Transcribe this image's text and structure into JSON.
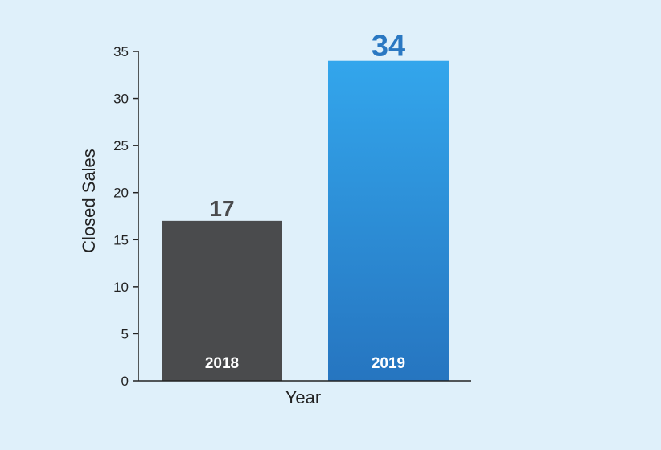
{
  "chart_data": {
    "type": "bar",
    "categories": [
      "2018",
      "2019"
    ],
    "values": [
      17,
      34
    ],
    "xlabel": "Year",
    "ylabel": "Closed Sales",
    "ylim": [
      0,
      35
    ],
    "yticks": [
      0,
      5,
      10,
      15,
      20,
      25,
      30,
      35
    ],
    "grid": false,
    "category_label_position": "inside-bottom",
    "value_label_position": "above-bar",
    "colors": {
      "background": "#dff0fa",
      "axis": "#222222",
      "bar_2018": "#4a4b4d",
      "bar_2019_top": "#33a6ec",
      "bar_2019_bottom": "#2675c0",
      "value_2018": "#4a4b4d",
      "value_2019": "#2a78c2",
      "category_text": "#ffffff"
    }
  }
}
